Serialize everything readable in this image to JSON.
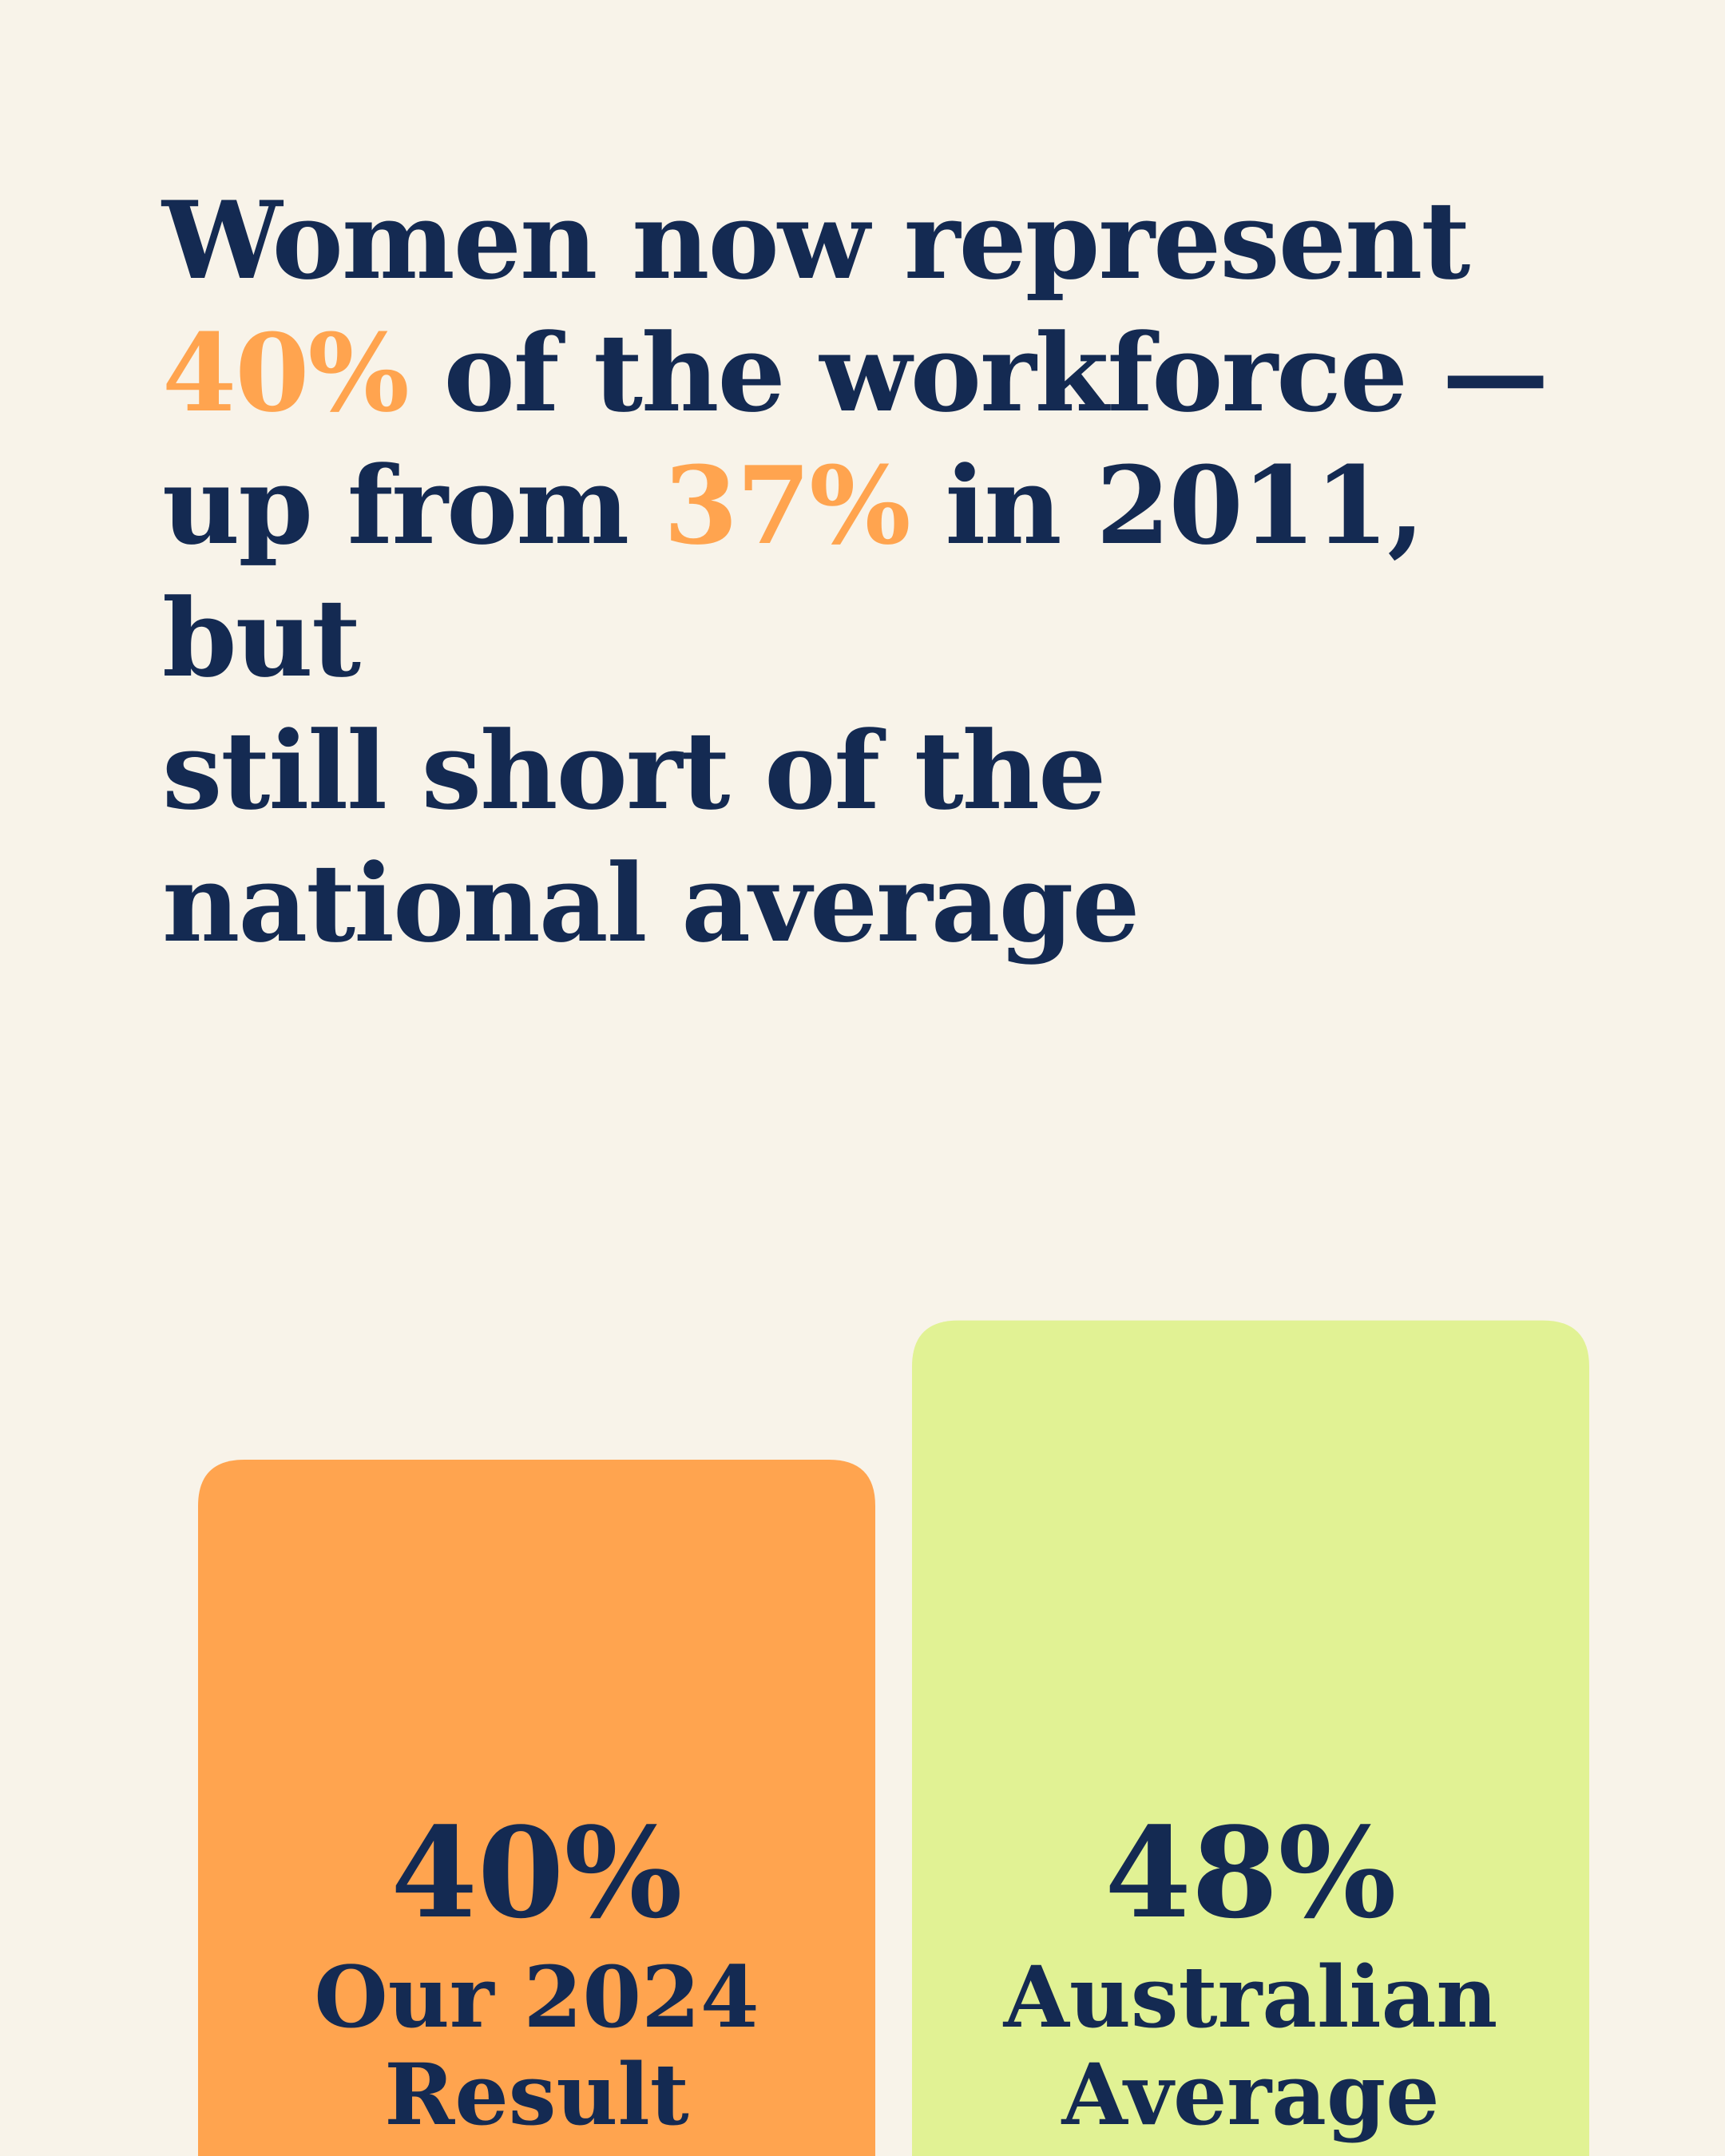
{
  "colors": {
    "background": "#f8f3e9",
    "text": "#142a52",
    "accent": "#ffa44f",
    "bar_primary": "#ffa44f",
    "bar_secondary": "#e1f294"
  },
  "headline": {
    "part1": "Women now represent",
    "highlight1": "40%",
    "part2": "of the workforce —",
    "part3": "up from",
    "highlight2": "37%",
    "part4": "in 2011, but",
    "part5": "still short of the",
    "part6": "national average"
  },
  "chart_data": {
    "type": "bar",
    "categories": [
      "Our 2024 Result",
      "Australian Average"
    ],
    "values": [
      40,
      48
    ],
    "series": [
      {
        "values": [
          40,
          48
        ],
        "value_labels": [
          "40%",
          "48%"
        ],
        "category_label_lines": [
          [
            "Our 2024",
            "Result"
          ],
          [
            "Australian",
            "Average"
          ]
        ]
      }
    ],
    "bar_colors": [
      "#ffa44f",
      "#e1f294"
    ],
    "title": "",
    "xlabel": "",
    "ylabel": "",
    "grid": false,
    "legend": "none"
  }
}
